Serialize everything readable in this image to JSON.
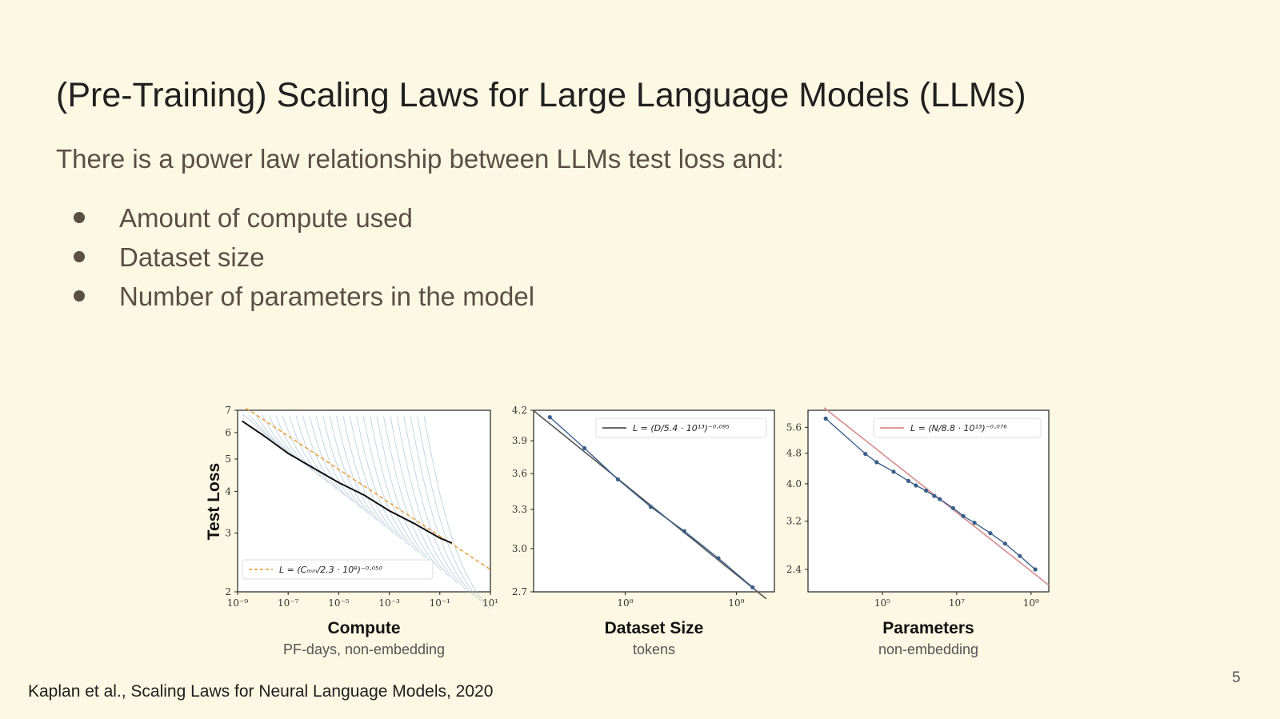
{
  "slide": {
    "title": "(Pre-Training) Scaling Laws for Large Language Models (LLMs)",
    "subtitle": "There is a power law relationship between LLMs test loss and:",
    "bullets": [
      "Amount of compute used",
      "Dataset size",
      "Number of parameters in the model"
    ],
    "citation": "Kaplan et al., Scaling Laws for Neural Language Models, 2020",
    "page_number": "5"
  },
  "colors": {
    "background": "#fcf8e3",
    "compute_runs": "#a9c4d6",
    "compute_frontier": "#111111",
    "compute_fit": "#e9a64a",
    "data_points": "#3b5f8a",
    "dataset_fit": "#555555",
    "parameters_fit": "#d98b8b"
  },
  "chart_data": [
    {
      "type": "line",
      "ylabel": "Test Loss",
      "xlabel": "Compute",
      "xsublabel": "PF-days, non-embedding",
      "xscale": "log",
      "yscale": "log",
      "xlim": [
        1e-09,
        10
      ],
      "ylim": [
        2,
        7
      ],
      "xticks": [
        1e-09,
        1e-07,
        1e-05,
        0.001,
        0.1,
        10
      ],
      "xtick_labels": [
        "10⁻⁹",
        "10⁻⁷",
        "10⁻⁵",
        "10⁻³",
        "10⁻¹",
        "10¹"
      ],
      "yticks": [
        2,
        3,
        4,
        5,
        6,
        7
      ],
      "ytick_labels": [
        "2",
        "3",
        "4",
        "5",
        "6",
        "7"
      ],
      "legend": "L = (Cₘᵢₙ/2.3 · 10⁸)⁻⁰·⁰⁵⁰",
      "legend_position": "lower-left",
      "fit": {
        "scale": 230000000.0,
        "exponent": -0.05
      },
      "frontier": {
        "x": [
          1.5e-09,
          1e-08,
          1e-07,
          1e-06,
          1e-05,
          0.0001,
          0.001,
          0.01,
          0.1,
          0.3
        ],
        "y": [
          6.5,
          5.9,
          5.2,
          4.7,
          4.25,
          3.9,
          3.5,
          3.2,
          2.9,
          2.8
        ]
      }
    },
    {
      "type": "line",
      "xlabel": "Dataset Size",
      "xsublabel": "tokens",
      "xscale": "log",
      "yscale": "log",
      "xlim": [
        15000000.0,
        2200000000.0
      ],
      "ylim": [
        2.7,
        4.2
      ],
      "xticks": [
        100000000.0,
        1000000000.0
      ],
      "xtick_labels": [
        "10⁸",
        "10⁹"
      ],
      "yticks": [
        2.7,
        3.0,
        3.3,
        3.6,
        3.9,
        4.2
      ],
      "ytick_labels": [
        "2.7",
        "3.0",
        "3.3",
        "3.6",
        "3.9",
        "4.2"
      ],
      "legend": "L = (D/5.4 · 10¹³)⁻⁰·⁰⁹⁵",
      "legend_position": "upper-right",
      "fit": {
        "scale": 54000000000000.0,
        "exponent": -0.095
      },
      "points": {
        "x": [
          21000000.0,
          43000000.0,
          86000000.0,
          170000000.0,
          340000000.0,
          690000000.0,
          1400000000.0
        ],
        "y": [
          4.13,
          3.83,
          3.55,
          3.32,
          3.13,
          2.93,
          2.73
        ]
      }
    },
    {
      "type": "line",
      "xlabel": "Parameters",
      "xsublabel": "non-embedding",
      "xscale": "log",
      "yscale": "log",
      "xlim": [
        1000.0,
        3000000000.0
      ],
      "ylim": [
        2.1,
        6.2
      ],
      "xticks": [
        100000.0,
        10000000.0,
        1000000000.0
      ],
      "xtick_labels": [
        "10⁵",
        "10⁷",
        "10⁹"
      ],
      "yticks": [
        2.4,
        3.2,
        4.0,
        4.8,
        5.6
      ],
      "ytick_labels": [
        "2.4",
        "3.2",
        "4.0",
        "4.8",
        "5.6"
      ],
      "legend": "L = (N/8.8 · 10¹³)⁻⁰·⁰⁷⁶",
      "legend_position": "upper-right",
      "fit": {
        "scale": 88000000000000.0,
        "exponent": -0.076
      },
      "points": {
        "x": [
          3000.0,
          35000.0,
          70000.0,
          200000.0,
          500000.0,
          800000.0,
          1500000.0,
          2500000.0,
          3500000.0,
          8000000.0,
          15000000.0,
          30000000.0,
          80000000.0,
          200000000.0,
          500000000.0,
          1300000000.0
        ],
        "y": [
          5.9,
          4.78,
          4.55,
          4.3,
          4.07,
          3.96,
          3.84,
          3.72,
          3.65,
          3.46,
          3.3,
          3.17,
          2.98,
          2.8,
          2.6,
          2.4
        ]
      }
    }
  ]
}
